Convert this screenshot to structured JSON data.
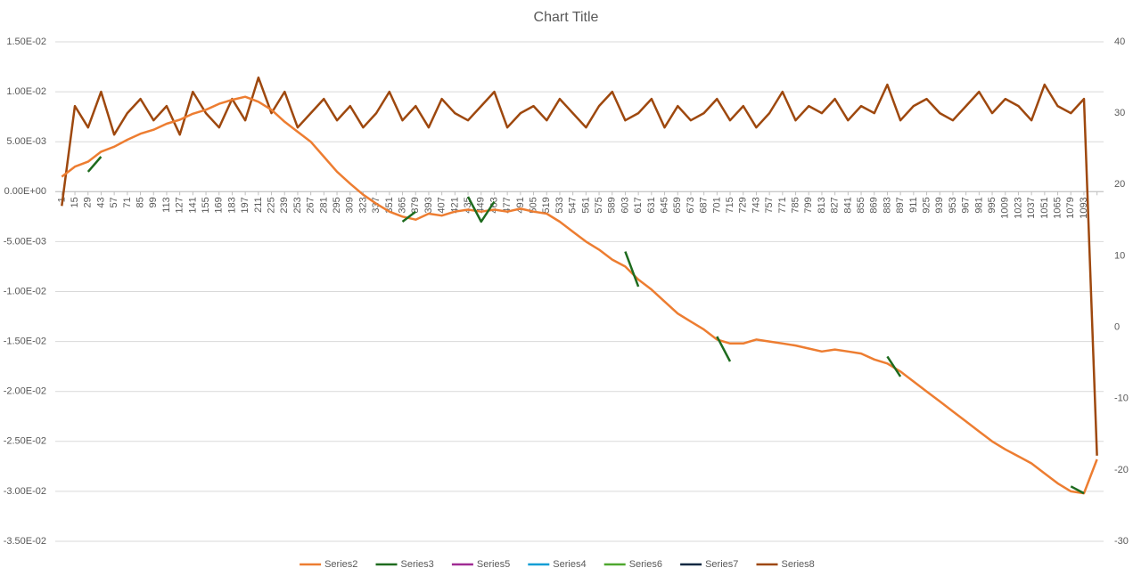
{
  "chart_data": {
    "type": "line",
    "title": "Chart Title",
    "categories": [
      1,
      15,
      29,
      43,
      57,
      71,
      85,
      99,
      113,
      127,
      141,
      155,
      169,
      183,
      197,
      211,
      225,
      239,
      253,
      267,
      281,
      295,
      309,
      323,
      337,
      351,
      365,
      379,
      393,
      407,
      421,
      435,
      449,
      463,
      477,
      491,
      505,
      519,
      533,
      547,
      561,
      575,
      589,
      603,
      617,
      631,
      645,
      659,
      673,
      687,
      701,
      715,
      729,
      743,
      757,
      771,
      785,
      799,
      813,
      827,
      841,
      855,
      869,
      883,
      897,
      911,
      925,
      939,
      953,
      967,
      981,
      995,
      1009,
      1023,
      1037,
      1051,
      1065,
      1079,
      1093,
      null
    ],
    "series": [
      {
        "name": "Series2",
        "color": "#ED7D31",
        "values": [
          0.0015,
          0.0025,
          0.003,
          0.004,
          0.0045,
          0.0052,
          0.0058,
          0.0062,
          0.0068,
          0.0072,
          0.0078,
          0.0082,
          0.0088,
          0.0092,
          0.0095,
          0.009,
          0.0082,
          0.007,
          0.006,
          0.005,
          0.0035,
          0.002,
          0.0008,
          -0.0003,
          -0.0012,
          -0.002,
          -0.0025,
          -0.0028,
          -0.0022,
          -0.0024,
          -0.002,
          -0.0018,
          -0.002,
          -0.0018,
          -0.002,
          -0.0017,
          -0.002,
          -0.0022,
          -0.003,
          -0.004,
          -0.005,
          -0.0058,
          -0.0068,
          -0.0075,
          -0.0088,
          -0.0098,
          -0.011,
          -0.0122,
          -0.013,
          -0.0138,
          -0.0148,
          -0.0152,
          -0.0152,
          -0.0148,
          -0.015,
          -0.0152,
          -0.0154,
          -0.0157,
          -0.016,
          -0.0158,
          -0.016,
          -0.0162,
          -0.0168,
          -0.0172,
          -0.018,
          -0.019,
          -0.02,
          -0.021,
          -0.022,
          -0.023,
          -0.024,
          -0.025,
          -0.0258,
          -0.0265,
          -0.0272,
          -0.0282,
          -0.0292,
          -0.03,
          -0.0302,
          -0.0268
        ]
      },
      {
        "name": "Series3",
        "color": "#1E6B1E",
        "values": [
          null,
          null,
          0.002,
          0.0035,
          null,
          null,
          null,
          null,
          null,
          null,
          null,
          null,
          null,
          null,
          null,
          null,
          null,
          null,
          null,
          null,
          null,
          null,
          null,
          null,
          null,
          null,
          -0.003,
          -0.002,
          null,
          null,
          null,
          -0.0005,
          -0.003,
          -0.001,
          null,
          null,
          null,
          null,
          null,
          null,
          null,
          null,
          null,
          -0.006,
          -0.0095,
          null,
          null,
          null,
          null,
          null,
          -0.0145,
          -0.017,
          null,
          null,
          null,
          null,
          null,
          null,
          null,
          null,
          null,
          null,
          null,
          -0.0165,
          -0.0185,
          null,
          null,
          null,
          null,
          null,
          null,
          null,
          null,
          null,
          null,
          null,
          null,
          -0.0295,
          -0.0302,
          null
        ]
      },
      {
        "name": "Series5",
        "color": "#A02B93",
        "values": [
          null,
          null,
          null,
          null,
          null,
          null,
          null,
          null,
          null,
          null,
          null,
          null,
          null,
          null,
          null,
          null,
          null,
          null,
          null,
          null,
          null,
          null,
          null,
          null,
          null,
          null,
          null,
          null,
          null,
          null,
          null,
          null,
          null,
          null,
          null,
          null,
          null,
          null,
          null,
          null,
          null,
          null,
          null,
          null,
          null,
          null,
          null,
          null,
          null,
          null,
          null,
          null,
          null,
          null,
          null,
          null,
          null,
          null,
          null,
          null,
          null,
          null,
          null,
          null,
          null,
          null,
          null,
          null,
          null,
          null,
          null,
          null,
          null,
          null,
          null,
          null,
          null,
          null,
          null,
          null
        ]
      },
      {
        "name": "Series4",
        "color": "#0F9ED5",
        "values": [
          null,
          null,
          null,
          null,
          null,
          null,
          null,
          null,
          null,
          null,
          null,
          null,
          null,
          null,
          null,
          null,
          null,
          null,
          null,
          null,
          null,
          null,
          null,
          null,
          null,
          null,
          null,
          null,
          null,
          null,
          null,
          null,
          null,
          null,
          null,
          null,
          null,
          null,
          null,
          null,
          null,
          null,
          null,
          null,
          null,
          null,
          null,
          null,
          null,
          null,
          null,
          null,
          null,
          null,
          null,
          null,
          null,
          null,
          null,
          null,
          null,
          null,
          null,
          null,
          null,
          null,
          null,
          null,
          null,
          null,
          null,
          null,
          null,
          null,
          null,
          null,
          null,
          null,
          null,
          null
        ]
      },
      {
        "name": "Series6",
        "color": "#4EA72E",
        "values": [
          null,
          null,
          null,
          null,
          null,
          null,
          null,
          null,
          null,
          null,
          null,
          null,
          null,
          null,
          null,
          null,
          null,
          null,
          null,
          null,
          null,
          null,
          null,
          null,
          null,
          null,
          null,
          null,
          null,
          null,
          null,
          null,
          null,
          null,
          null,
          null,
          null,
          null,
          null,
          null,
          null,
          null,
          null,
          null,
          null,
          null,
          null,
          null,
          null,
          null,
          null,
          null,
          null,
          null,
          null,
          null,
          null,
          null,
          null,
          null,
          null,
          null,
          null,
          null,
          null,
          null,
          null,
          null,
          null,
          null,
          null,
          null,
          null,
          null,
          null,
          null,
          null,
          null,
          null,
          null
        ]
      },
      {
        "name": "Series7",
        "color": "#0E2841",
        "values": [
          null,
          null,
          null,
          null,
          null,
          null,
          null,
          null,
          null,
          null,
          null,
          null,
          null,
          null,
          null,
          null,
          null,
          null,
          null,
          null,
          null,
          null,
          null,
          null,
          null,
          null,
          null,
          null,
          null,
          null,
          null,
          null,
          null,
          null,
          null,
          null,
          null,
          null,
          null,
          null,
          null,
          null,
          null,
          null,
          null,
          null,
          null,
          null,
          null,
          null,
          null,
          null,
          null,
          null,
          null,
          null,
          null,
          null,
          null,
          null,
          null,
          null,
          null,
          null,
          null,
          null,
          null,
          null,
          null,
          null,
          null,
          null,
          null,
          null,
          null,
          null,
          null,
          null,
          null,
          null
        ]
      },
      {
        "name": "Series8",
        "color": "#9E480E",
        "axis": "y2",
        "values": [
          17,
          31,
          28,
          33,
          27,
          30,
          32,
          29,
          31,
          27,
          33,
          30,
          28,
          32,
          29,
          35,
          30,
          33,
          28,
          30,
          32,
          29,
          31,
          28,
          30,
          33,
          29,
          31,
          28,
          32,
          30,
          29,
          31,
          33,
          28,
          30,
          31,
          29,
          32,
          30,
          28,
          31,
          33,
          29,
          30,
          32,
          28,
          31,
          29,
          30,
          32,
          29,
          31,
          28,
          30,
          33,
          29,
          31,
          30,
          32,
          29,
          31,
          30,
          34,
          29,
          31,
          32,
          30,
          29,
          31,
          33,
          30,
          32,
          31,
          29,
          34,
          31,
          30,
          32,
          -18
        ]
      }
    ],
    "ylim": [
      -0.035,
      0.015
    ],
    "yticks": [
      {
        "value": -0.035,
        "label": "-3.50E-02"
      },
      {
        "value": -0.03,
        "label": "-3.00E-02"
      },
      {
        "value": -0.025,
        "label": "-2.50E-02"
      },
      {
        "value": -0.02,
        "label": "-2.00E-02"
      },
      {
        "value": -0.015,
        "label": "-1.50E-02"
      },
      {
        "value": -0.01,
        "label": "-1.00E-02"
      },
      {
        "value": -0.005,
        "label": "-5.00E-03"
      },
      {
        "value": 0,
        "label": "0.00E+00"
      },
      {
        "value": 0.005,
        "label": "5.00E-03"
      },
      {
        "value": 0.01,
        "label": "1.00E-02"
      },
      {
        "value": 0.015,
        "label": "1.50E-02"
      }
    ],
    "y2lim": [
      -30,
      40
    ],
    "y2ticks": [
      -30,
      -20,
      -10,
      0,
      10,
      20,
      30,
      40
    ],
    "grid": true,
    "legend": "bottom"
  }
}
